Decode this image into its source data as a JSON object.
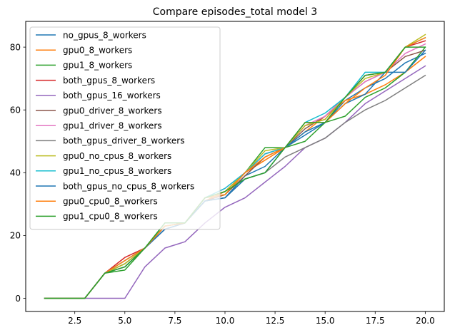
{
  "chart_data": {
    "type": "line",
    "title": "Compare episodes_total model 3",
    "xlabel": "",
    "ylabel": "",
    "xlim": [
      0.05,
      20.95
    ],
    "ylim": [
      -4.2,
      88.2
    ],
    "xticks": [
      2.5,
      5.0,
      7.5,
      10.0,
      12.5,
      15.0,
      17.5,
      20.0
    ],
    "xtick_labels": [
      "2.5",
      "5.0",
      "7.5",
      "10.0",
      "12.5",
      "15.0",
      "17.5",
      "20.0"
    ],
    "yticks": [
      0,
      20,
      40,
      60,
      80
    ],
    "ytick_labels": [
      "0",
      "20",
      "40",
      "60",
      "80"
    ],
    "grid": false,
    "legend_position": "upper left",
    "x": [
      1,
      2,
      3,
      4,
      5,
      6,
      7,
      8,
      9,
      10,
      11,
      12,
      13,
      14,
      15,
      16,
      17,
      18,
      19,
      20
    ],
    "series": [
      {
        "name": "no_gpus_8_workers",
        "color": "#1f77b4",
        "values": [
          0,
          0,
          0,
          8,
          11,
          16,
          22,
          24,
          31,
          32,
          39,
          42,
          48,
          52,
          56,
          63,
          67,
          70,
          75,
          78
        ]
      },
      {
        "name": "gpu0_8_workers",
        "color": "#ff7f0e",
        "values": [
          0,
          0,
          0,
          8,
          12,
          16,
          23,
          24,
          31,
          34,
          40,
          44,
          48,
          53,
          58,
          63,
          65,
          68,
          72,
          77
        ]
      },
      {
        "name": "gpu1_8_workers",
        "color": "#2ca02c",
        "values": [
          0,
          0,
          0,
          8,
          9,
          16,
          24,
          24,
          32,
          33,
          40,
          48,
          48,
          50,
          56,
          58,
          64,
          67,
          72,
          80
        ]
      },
      {
        "name": "both_gpus_8_workers",
        "color": "#d62728",
        "values": [
          0,
          0,
          0,
          8,
          13,
          16,
          23,
          24,
          32,
          34,
          40,
          46,
          48,
          55,
          57,
          64,
          71,
          72,
          80,
          82
        ]
      },
      {
        "name": "both_gpus_16_workers",
        "color": "#9467bd",
        "values": [
          0,
          0,
          0,
          0,
          0,
          10,
          16,
          18,
          24,
          29,
          32,
          37,
          42,
          48,
          51,
          56,
          62,
          66,
          70,
          74
        ]
      },
      {
        "name": "gpu0_driver_8_workers",
        "color": "#8c564b",
        "values": [
          0,
          0,
          0,
          8,
          11,
          16,
          23,
          24,
          31,
          33,
          39,
          45,
          48,
          54,
          58,
          64,
          69,
          72,
          77,
          79
        ]
      },
      {
        "name": "gpu1_driver_8_workers",
        "color": "#e377c2",
        "values": [
          0,
          0,
          0,
          8,
          12,
          16,
          22,
          24,
          32,
          35,
          40,
          46,
          48,
          55,
          58,
          64,
          69,
          72,
          78,
          81
        ]
      },
      {
        "name": "both_gpus_driver_8_workers",
        "color": "#7f7f7f",
        "values": [
          0,
          0,
          0,
          8,
          10,
          16,
          22,
          24,
          31,
          32,
          38,
          40,
          45,
          48,
          51,
          56,
          60,
          63,
          67,
          71
        ]
      },
      {
        "name": "gpu0_no_cpus_8_workers",
        "color": "#bcbd22",
        "values": [
          0,
          0,
          0,
          8,
          11,
          16,
          23,
          24,
          32,
          34,
          40,
          47,
          48,
          55,
          57,
          64,
          70,
          72,
          80,
          84
        ]
      },
      {
        "name": "gpu1_no_cpus_8_workers",
        "color": "#17becf",
        "values": [
          0,
          0,
          0,
          8,
          12,
          16,
          23,
          24,
          32,
          35,
          40,
          46,
          48,
          56,
          59,
          64,
          72,
          72,
          80,
          83
        ]
      },
      {
        "name": "both_gpus_no_cpus_8_workers",
        "color": "#1f77b4",
        "values": [
          0,
          0,
          0,
          8,
          10,
          16,
          22,
          24,
          31,
          32,
          38,
          40,
          48,
          53,
          56,
          62,
          65,
          72,
          72,
          79
        ]
      },
      {
        "name": "gpu0_cpu0_8_workers",
        "color": "#ff7f0e",
        "values": [
          0,
          0,
          0,
          8,
          12,
          16,
          23,
          24,
          32,
          33,
          40,
          45,
          48,
          56,
          56,
          62,
          67,
          71,
          80,
          83
        ]
      },
      {
        "name": "gpu1_cpu0_8_workers",
        "color": "#2ca02c",
        "values": [
          0,
          0,
          0,
          8,
          10,
          16,
          24,
          24,
          32,
          34,
          38,
          40,
          48,
          56,
          56,
          64,
          71,
          72,
          80,
          80
        ]
      }
    ]
  }
}
